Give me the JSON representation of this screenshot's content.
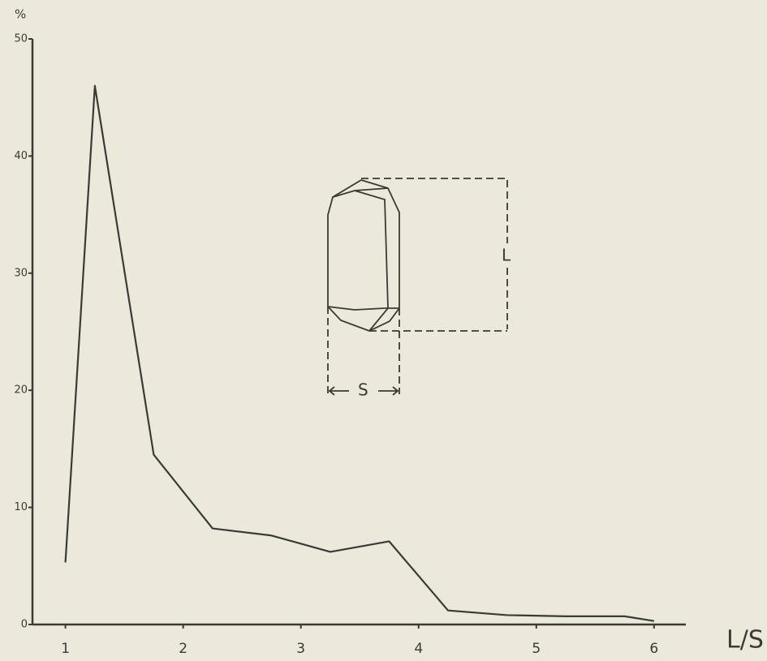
{
  "chart_data": {
    "type": "line",
    "y_label": "%",
    "x_label": "L/S",
    "x": [
      1,
      1.25,
      1.75,
      2.25,
      2.75,
      3.25,
      3.75,
      4.25,
      4.75,
      5.25,
      5.75,
      6
    ],
    "values": [
      5.3,
      46,
      14.5,
      8.2,
      7.6,
      6.2,
      7.1,
      1.2,
      0.8,
      0.7,
      0.7,
      0.3
    ],
    "color": "#3a3a36",
    "xlim": [
      0.72,
      6.27
    ],
    "xticks": [
      1,
      2,
      3,
      4,
      5,
      6
    ],
    "ylim": [
      0,
      50
    ],
    "yticks": [
      0,
      10,
      20,
      30,
      40,
      50
    ],
    "grid": false,
    "annotations": [
      "L",
      "S"
    ]
  }
}
